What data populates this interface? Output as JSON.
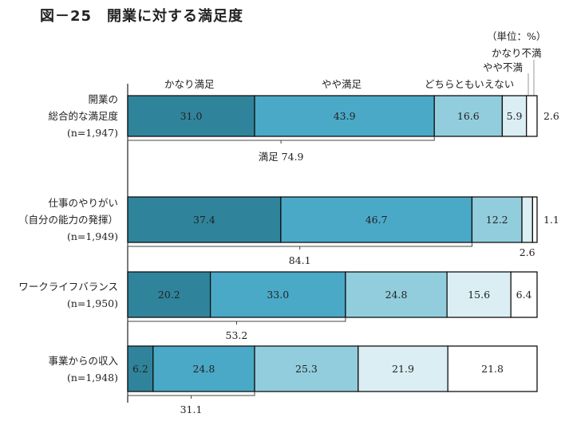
{
  "title": "図－25　開業に対する満足度",
  "unit": "（単位：%）",
  "chart_data": {
    "type": "bar",
    "orientation": "horizontal-stacked-100",
    "title": "図－25　開業に対する満足度",
    "unit": "（単位：%）",
    "legend": [
      "かなり満足",
      "やや満足",
      "どちらともいえない",
      "やや不満",
      "かなり不満"
    ],
    "colors": [
      "#2f849c",
      "#4aa9c7",
      "#92cddd",
      "#daeef3",
      "#ffffff"
    ],
    "categories": [
      {
        "lines": [
          "開業の",
          "総合的な満足度",
          "(n=1,947)"
        ],
        "values": [
          31.0,
          43.9,
          16.6,
          5.9,
          2.6
        ],
        "satisfied": "満足 74.9"
      },
      {
        "lines": [
          "仕事のやりがい",
          "（自分の能力の発揮）",
          "(n=1,949)"
        ],
        "values": [
          37.4,
          46.7,
          12.2,
          2.6,
          1.1
        ],
        "satisfied": "84.1"
      },
      {
        "lines": [
          "ワークライフバランス",
          "(n=1,950)"
        ],
        "values": [
          20.2,
          33.0,
          24.8,
          15.6,
          6.4
        ],
        "satisfied": "53.2"
      },
      {
        "lines": [
          "事業からの収入",
          "(n=1,948)"
        ],
        "values": [
          6.2,
          24.8,
          25.3,
          21.9,
          21.8
        ],
        "satisfied": "31.1"
      }
    ]
  }
}
